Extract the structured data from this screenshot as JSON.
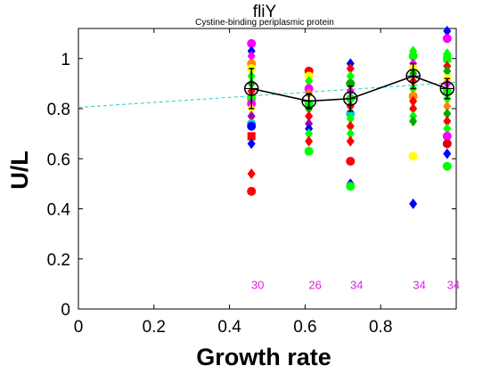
{
  "chart_data": {
    "type": "scatter",
    "title": "fliY",
    "subtitle": "Cystine-binding periplasmic protein",
    "xlabel": "Growth rate",
    "ylabel": "U/L",
    "xlim": [
      0,
      1.0
    ],
    "ylim": [
      0,
      1.12
    ],
    "xticks": [
      "0",
      "0.2",
      "0.4",
      "0.6",
      "0.8"
    ],
    "yticks": [
      "0",
      "0.2",
      "0.4",
      "0.6",
      "0.8",
      "1"
    ],
    "grid": false,
    "legend": "none",
    "colors": {
      "mean_line": "#000000",
      "fit_line": "#22cccc",
      "count_text": "#dd22dd",
      "palette": [
        "#ff00ff",
        "#0000ff",
        "#ff0000",
        "#00ff00",
        "#ffff00",
        "#00aa00",
        "#00cccc",
        "#aa00aa",
        "#ff8800",
        "#dd0000"
      ]
    },
    "mean_series": {
      "x": [
        0.458,
        0.61,
        0.72,
        0.886,
        0.976
      ],
      "y": [
        0.88,
        0.83,
        0.84,
        0.93,
        0.88
      ],
      "err": [
        0.08,
        0.03,
        0.05,
        0.05,
        0.04
      ]
    },
    "fit_line": {
      "x": [
        0,
        1.0
      ],
      "y": [
        0.805,
        0.905
      ]
    },
    "counts": [
      {
        "x": 0.458,
        "label": "30"
      },
      {
        "x": 0.61,
        "label": "26"
      },
      {
        "x": 0.72,
        "label": "34"
      },
      {
        "x": 0.886,
        "label": "34"
      },
      {
        "x": 0.976,
        "label": "34"
      }
    ],
    "points": [
      {
        "x": 0.458,
        "y": 1.06,
        "c": "#ff00ff",
        "m": "o"
      },
      {
        "x": 0.458,
        "y": 1.03,
        "c": "#0000ff",
        "m": "d"
      },
      {
        "x": 0.458,
        "y": 1.01,
        "c": "#ff00ff",
        "m": "d"
      },
      {
        "x": 0.458,
        "y": 0.98,
        "c": "#ff8800",
        "m": "o"
      },
      {
        "x": 0.458,
        "y": 0.96,
        "c": "#ffff00",
        "m": "o"
      },
      {
        "x": 0.458,
        "y": 0.93,
        "c": "#00ff00",
        "m": "d"
      },
      {
        "x": 0.458,
        "y": 0.9,
        "c": "#00aa00",
        "m": "d"
      },
      {
        "x": 0.458,
        "y": 0.87,
        "c": "#ff0000",
        "m": "d"
      },
      {
        "x": 0.458,
        "y": 0.84,
        "c": "#00ff00",
        "m": "o"
      },
      {
        "x": 0.458,
        "y": 0.82,
        "c": "#ff00ff",
        "m": "o"
      },
      {
        "x": 0.458,
        "y": 0.8,
        "c": "#ffff00",
        "m": "d"
      },
      {
        "x": 0.458,
        "y": 0.77,
        "c": "#aa00aa",
        "m": "d"
      },
      {
        "x": 0.458,
        "y": 0.74,
        "c": "#00cccc",
        "m": "o"
      },
      {
        "x": 0.458,
        "y": 0.73,
        "c": "#0000ff",
        "m": "o"
      },
      {
        "x": 0.458,
        "y": 0.69,
        "c": "#ff0000",
        "m": "s"
      },
      {
        "x": 0.458,
        "y": 0.66,
        "c": "#0000ff",
        "m": "d"
      },
      {
        "x": 0.458,
        "y": 0.54,
        "c": "#ff0000",
        "m": "d"
      },
      {
        "x": 0.458,
        "y": 0.47,
        "c": "#ff0000",
        "m": "o"
      },
      {
        "x": 0.61,
        "y": 0.95,
        "c": "#ff0000",
        "m": "o"
      },
      {
        "x": 0.61,
        "y": 0.93,
        "c": "#ffff00",
        "m": "o"
      },
      {
        "x": 0.61,
        "y": 0.91,
        "c": "#00ff00",
        "m": "d"
      },
      {
        "x": 0.61,
        "y": 0.88,
        "c": "#ff00ff",
        "m": "o"
      },
      {
        "x": 0.61,
        "y": 0.86,
        "c": "#ff8800",
        "m": "d"
      },
      {
        "x": 0.61,
        "y": 0.82,
        "c": "#00ff00",
        "m": "o"
      },
      {
        "x": 0.61,
        "y": 0.8,
        "c": "#00aa00",
        "m": "d"
      },
      {
        "x": 0.61,
        "y": 0.77,
        "c": "#ff0000",
        "m": "d"
      },
      {
        "x": 0.61,
        "y": 0.74,
        "c": "#aa00aa",
        "m": "d"
      },
      {
        "x": 0.61,
        "y": 0.72,
        "c": "#0000ff",
        "m": "d"
      },
      {
        "x": 0.61,
        "y": 0.7,
        "c": "#00ff00",
        "m": "d"
      },
      {
        "x": 0.61,
        "y": 0.67,
        "c": "#ff0000",
        "m": "d"
      },
      {
        "x": 0.61,
        "y": 0.63,
        "c": "#00ff00",
        "m": "o"
      },
      {
        "x": 0.72,
        "y": 0.98,
        "c": "#0000ff",
        "m": "d"
      },
      {
        "x": 0.72,
        "y": 0.96,
        "c": "#ff0000",
        "m": "d"
      },
      {
        "x": 0.72,
        "y": 0.93,
        "c": "#00ff00",
        "m": "d"
      },
      {
        "x": 0.72,
        "y": 0.9,
        "c": "#00aa00",
        "m": "o"
      },
      {
        "x": 0.72,
        "y": 0.87,
        "c": "#ff00ff",
        "m": "d"
      },
      {
        "x": 0.72,
        "y": 0.84,
        "c": "#00ff00",
        "m": "o"
      },
      {
        "x": 0.72,
        "y": 0.81,
        "c": "#ff0000",
        "m": "d"
      },
      {
        "x": 0.72,
        "y": 0.78,
        "c": "#00cccc",
        "m": "o"
      },
      {
        "x": 0.72,
        "y": 0.76,
        "c": "#00ff00",
        "m": "d"
      },
      {
        "x": 0.72,
        "y": 0.73,
        "c": "#ff0000",
        "m": "d"
      },
      {
        "x": 0.72,
        "y": 0.7,
        "c": "#00ff00",
        "m": "d"
      },
      {
        "x": 0.72,
        "y": 0.67,
        "c": "#ff0000",
        "m": "d"
      },
      {
        "x": 0.72,
        "y": 0.59,
        "c": "#ff0000",
        "m": "o"
      },
      {
        "x": 0.72,
        "y": 0.5,
        "c": "#0000ff",
        "m": "d"
      },
      {
        "x": 0.72,
        "y": 0.49,
        "c": "#00ff00",
        "m": "o"
      },
      {
        "x": 0.886,
        "y": 1.03,
        "c": "#00ff00",
        "m": "d"
      },
      {
        "x": 0.886,
        "y": 1.01,
        "c": "#00ff00",
        "m": "o"
      },
      {
        "x": 0.886,
        "y": 0.98,
        "c": "#ff00ff",
        "m": "d"
      },
      {
        "x": 0.886,
        "y": 0.96,
        "c": "#ffff00",
        "m": "o"
      },
      {
        "x": 0.886,
        "y": 0.94,
        "c": "#00aa00",
        "m": "d"
      },
      {
        "x": 0.886,
        "y": 0.91,
        "c": "#ff0000",
        "m": "d"
      },
      {
        "x": 0.886,
        "y": 0.88,
        "c": "#00ff00",
        "m": "d"
      },
      {
        "x": 0.886,
        "y": 0.85,
        "c": "#ff8800",
        "m": "o"
      },
      {
        "x": 0.886,
        "y": 0.83,
        "c": "#ff0000",
        "m": "d"
      },
      {
        "x": 0.886,
        "y": 0.8,
        "c": "#ff0000",
        "m": "d"
      },
      {
        "x": 0.886,
        "y": 0.77,
        "c": "#00ff00",
        "m": "d"
      },
      {
        "x": 0.886,
        "y": 0.75,
        "c": "#00aa00",
        "m": "d"
      },
      {
        "x": 0.886,
        "y": 0.61,
        "c": "#ffff00",
        "m": "o"
      },
      {
        "x": 0.886,
        "y": 0.42,
        "c": "#0000ff",
        "m": "d"
      },
      {
        "x": 0.976,
        "y": 1.11,
        "c": "#0000ff",
        "m": "d"
      },
      {
        "x": 0.976,
        "y": 1.08,
        "c": "#ff00ff",
        "m": "o"
      },
      {
        "x": 0.976,
        "y": 1.02,
        "c": "#00ff00",
        "m": "d"
      },
      {
        "x": 0.976,
        "y": 1.0,
        "c": "#00ff00",
        "m": "s"
      },
      {
        "x": 0.976,
        "y": 0.97,
        "c": "#ff0000",
        "m": "d"
      },
      {
        "x": 0.976,
        "y": 0.95,
        "c": "#00aa00",
        "m": "d"
      },
      {
        "x": 0.976,
        "y": 0.92,
        "c": "#ffff00",
        "m": "o"
      },
      {
        "x": 0.976,
        "y": 0.9,
        "c": "#ff00ff",
        "m": "d"
      },
      {
        "x": 0.976,
        "y": 0.87,
        "c": "#00ff00",
        "m": "o"
      },
      {
        "x": 0.976,
        "y": 0.84,
        "c": "#00ff00",
        "m": "d"
      },
      {
        "x": 0.976,
        "y": 0.81,
        "c": "#ff8800",
        "m": "d"
      },
      {
        "x": 0.976,
        "y": 0.78,
        "c": "#00aa00",
        "m": "d"
      },
      {
        "x": 0.976,
        "y": 0.75,
        "c": "#ff0000",
        "m": "d"
      },
      {
        "x": 0.976,
        "y": 0.72,
        "c": "#00ff00",
        "m": "d"
      },
      {
        "x": 0.976,
        "y": 0.69,
        "c": "#ff00ff",
        "m": "o"
      },
      {
        "x": 0.976,
        "y": 0.66,
        "c": "#dd0000",
        "m": "o"
      },
      {
        "x": 0.976,
        "y": 0.62,
        "c": "#0000ff",
        "m": "d"
      },
      {
        "x": 0.976,
        "y": 0.57,
        "c": "#00ff00",
        "m": "o"
      }
    ]
  }
}
